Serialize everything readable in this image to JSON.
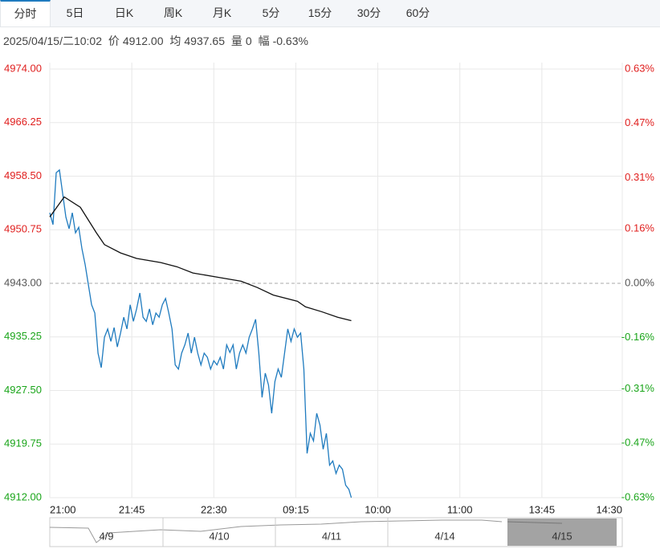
{
  "tabs": [
    "分时",
    "5日",
    "日K",
    "周K",
    "月K",
    "5分",
    "15分",
    "30分",
    "60分"
  ],
  "info": {
    "datetime": "2025/04/15/二10:02",
    "price_label": "价",
    "price": "4912.00",
    "avg_label": "均",
    "avg": "4937.65",
    "vol_label": "量",
    "vol": "0",
    "chg_label": "幅",
    "chg": "-0.63%"
  },
  "chart_data": {
    "type": "line",
    "x": [
      0,
      1,
      2,
      3,
      4,
      5,
      6,
      7,
      8,
      9,
      10,
      11,
      12,
      13,
      14,
      15,
      16,
      17,
      18,
      19,
      20,
      21,
      22,
      23,
      24,
      25,
      26,
      27,
      28,
      29,
      30,
      31,
      32,
      33,
      34,
      35,
      36,
      37,
      38,
      39,
      40,
      41,
      42,
      43,
      44,
      45,
      46,
      47,
      48,
      49,
      50,
      51,
      52,
      53,
      54,
      55,
      56,
      57,
      58,
      59,
      60,
      61,
      62,
      63,
      64,
      65,
      66,
      67,
      68,
      69,
      70,
      71,
      72,
      73,
      74,
      75,
      76,
      77,
      78,
      79,
      80,
      81,
      82,
      83,
      84,
      85,
      86,
      87,
      88,
      89,
      90,
      91,
      92,
      93,
      93.75
    ],
    "series": [
      {
        "color": "#1f7bbf",
        "values": [
          4953.2,
          4951.5,
          4959,
          4959.4,
          4956,
          4952.6,
          4950.9,
          4953.2,
          4950.3,
          4951.1,
          4948,
          4945.7,
          4942.8,
          4939.9,
          4938.7,
          4932.9,
          4930.8,
          4935.2,
          4936.4,
          4934.6,
          4936.6,
          4933.8,
          4935.8,
          4938.1,
          4936.4,
          4939.9,
          4937.5,
          4939.3,
          4941.6,
          4938.1,
          4937.5,
          4939.3,
          4937,
          4938.7,
          4938.1,
          4939.9,
          4940.8,
          4938.7,
          4936.4,
          4931.2,
          4930.6,
          4932.9,
          4934.1,
          4935.8,
          4932.9,
          4935.2,
          4932.9,
          4931.2,
          4932.9,
          4932.3,
          4930.6,
          4931.8,
          4931.2,
          4932.3,
          4930.6,
          4934.1,
          4933,
          4934.1,
          4930.6,
          4932.9,
          4934.1,
          4932.9,
          4935.2,
          4936.4,
          4937.8,
          4932.9,
          4926.5,
          4930,
          4928.3,
          4924.2,
          4928.8,
          4930.6,
          4929.4,
          4932.9,
          4936.4,
          4934.6,
          4936.4,
          4935.2,
          4935.8,
          4930.6,
          4918.4,
          4921.3,
          4920.2,
          4924.2,
          4922.5,
          4919,
          4921.3,
          4916.7,
          4917.3,
          4915.5,
          4916.7,
          4916.1,
          4913.8,
          4913.2,
          4912
        ]
      },
      {
        "color": "#111111",
        "x": [
          0,
          4.5,
          9.5,
          14.5,
          17,
          22,
          27,
          34.5,
          39.5,
          44.5,
          52,
          59.5,
          64.5,
          69.5,
          77,
          79.5,
          84.5,
          89.5,
          93.75
        ],
        "values": [
          4952.6,
          4955.5,
          4954,
          4950.3,
          4948.6,
          4947.4,
          4946.6,
          4946,
          4945.4,
          4944.5,
          4943.9,
          4943.3,
          4942.4,
          4941.3,
          4940.4,
          4939.6,
          4938.9,
          4938.1,
          4937.6
        ]
      }
    ],
    "base": 4943,
    "up_color": "#e0201f",
    "down_color": "#1aa51a",
    "flat_color": "#555555",
    "xlim": [
      0,
      178
    ],
    "xticks": [
      {
        "value": 0,
        "label": "21:00"
      },
      {
        "value": 25.5,
        "label": "21:45"
      },
      {
        "value": 51,
        "label": "22:30"
      },
      {
        "value": 76.5,
        "label": "09:15"
      },
      {
        "value": 102,
        "label": "10:00"
      },
      {
        "value": 127.5,
        "label": "11:00"
      },
      {
        "value": 153,
        "label": "13:45"
      },
      {
        "value": 178,
        "label": "14:30"
      }
    ],
    "ylim": [
      4912,
      4974
    ],
    "yticks": [
      {
        "value": 4974,
        "label": "4974.00"
      },
      {
        "value": 4966.25,
        "label": "4966.25"
      },
      {
        "value": 4958.5,
        "label": "4958.50"
      },
      {
        "value": 4950.75,
        "label": "4950.75"
      },
      {
        "value": 4943,
        "label": "4943.00"
      },
      {
        "value": 4935.25,
        "label": "4935.25"
      },
      {
        "value": 4927.5,
        "label": "4927.50"
      },
      {
        "value": 4919.75,
        "label": "4919.75"
      },
      {
        "value": 4912,
        "label": "4912.00"
      }
    ],
    "y2lim": [
      -0.63,
      0.63
    ],
    "y2ticks": [
      {
        "value": 0.63,
        "label": "0.63%"
      },
      {
        "value": 0.47,
        "label": "0.47%"
      },
      {
        "value": 0.31,
        "label": "0.31%"
      },
      {
        "value": 0.16,
        "label": "0.16%"
      },
      {
        "value": 0,
        "label": "0.00%"
      },
      {
        "value": -0.16,
        "label": "-0.16%"
      },
      {
        "value": -0.31,
        "label": "-0.31%"
      },
      {
        "value": -0.47,
        "label": "-0.47%"
      },
      {
        "value": -0.63,
        "label": "-0.63%"
      }
    ],
    "grid": true,
    "navigator": [
      "4/9",
      "4/10",
      "4/11",
      "4/14",
      "4/15"
    ]
  }
}
